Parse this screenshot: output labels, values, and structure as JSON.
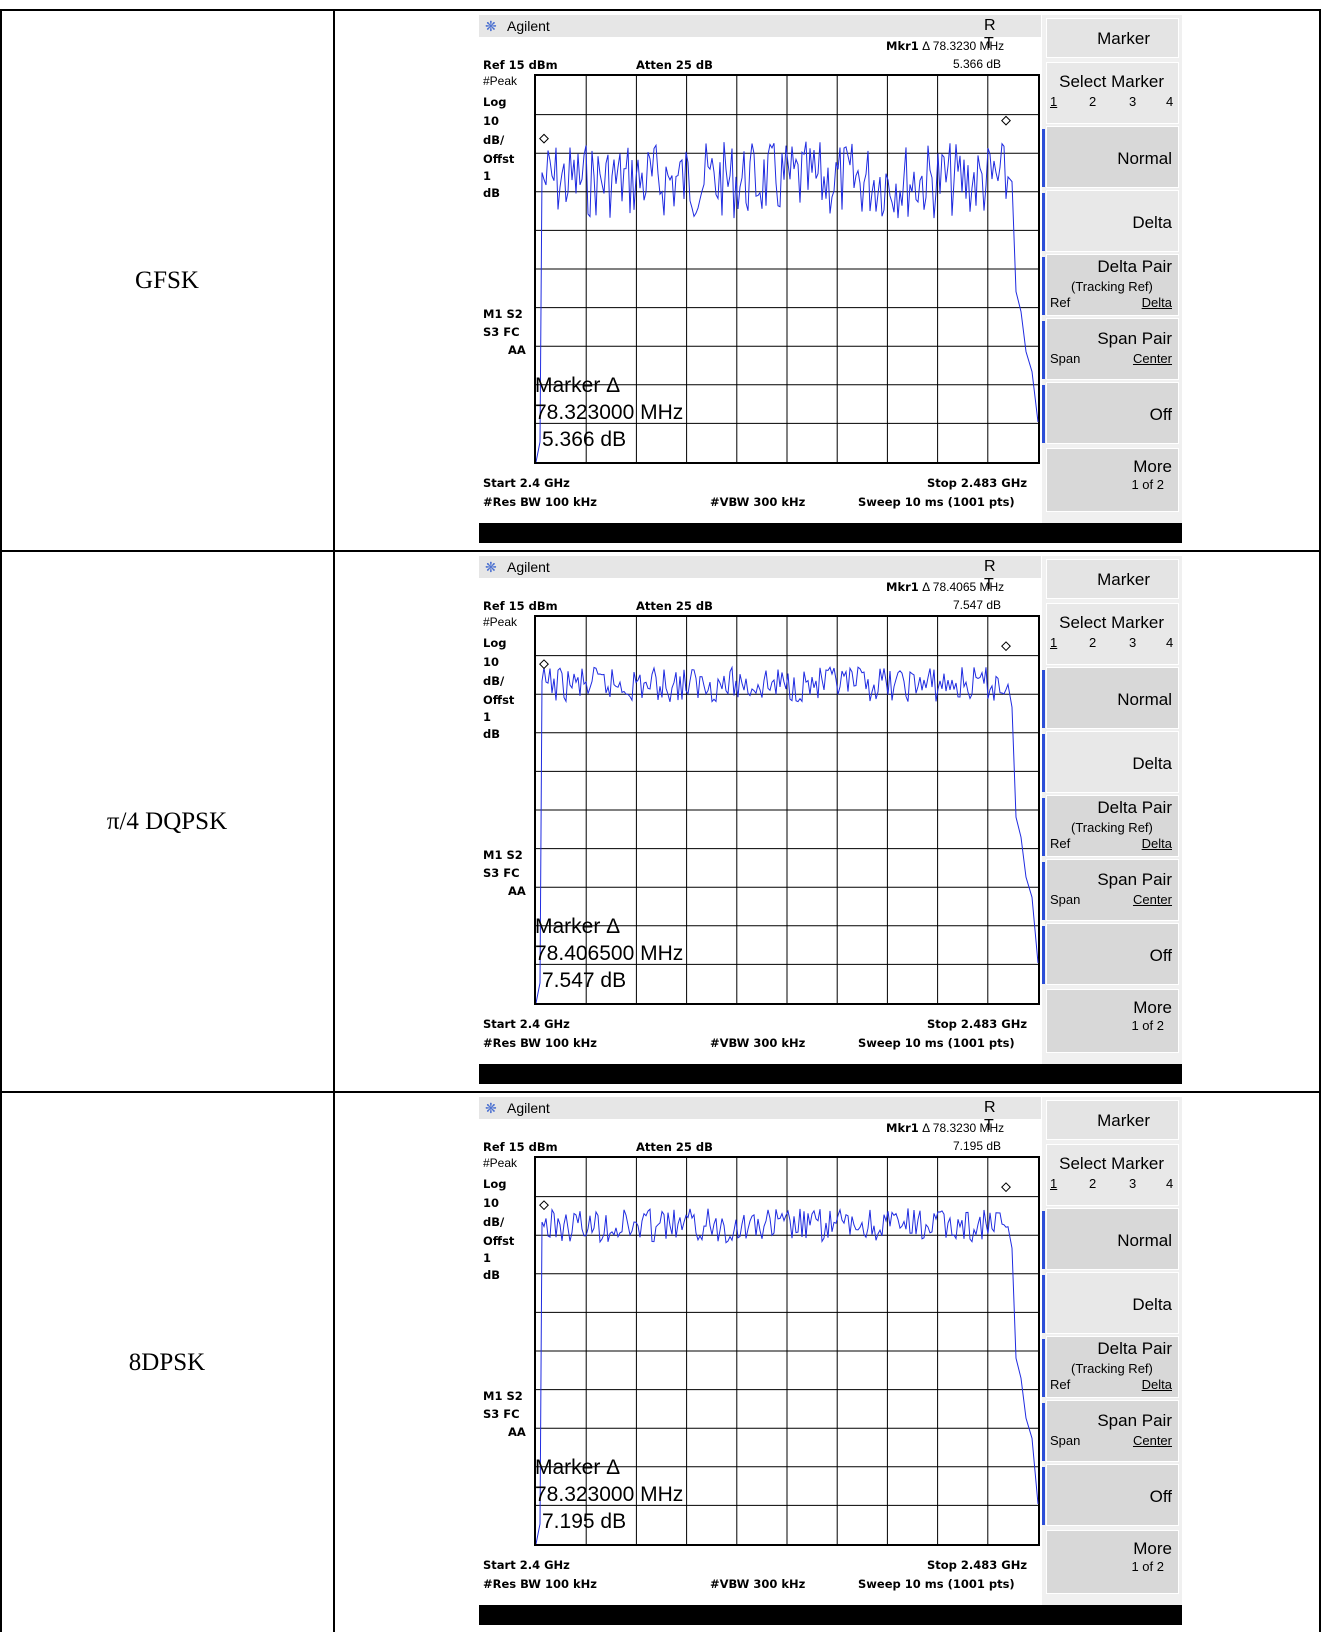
{
  "rows": [
    {
      "modulation": "GFSK",
      "screen": {
        "brand": "Agilent",
        "rt": "R T",
        "mkr_label": "Mkr1",
        "mkr_freq": "Δ 78.3230 MHz",
        "mkr_amp": "5.366 dB",
        "ref": "Ref 15 dBm",
        "atten": "Atten 25 dB",
        "left_labels": [
          "#Peak",
          "Log",
          "10",
          "dB/",
          "Offst",
          "1",
          "dB"
        ],
        "m1s2": "M1  S2",
        "s3fc": "S3  FC",
        "aa": "AA",
        "marker_title": "Marker Δ",
        "marker_freq": "78.323000 MHz",
        "marker_amp": "5.366 dB",
        "start": "Start 2.4 GHz",
        "stop": "Stop 2.483 GHz",
        "rbw": "#Res BW 100 kHz",
        "vbw": "#VBW 300 kHz",
        "sweep": "Sweep 10 ms (1001 pts)",
        "trace_level": 0.83,
        "trace_depth": 0.2
      }
    },
    {
      "modulation": "π/4 DQPSK",
      "screen": {
        "brand": "Agilent",
        "rt": "R T",
        "mkr_label": "Mkr1",
        "mkr_freq": "Δ 78.4065 MHz",
        "mkr_amp": "7.547 dB",
        "ref": "Ref 15 dBm",
        "atten": "Atten 25 dB",
        "left_labels": [
          "#Peak",
          "Log",
          "10",
          "dB/",
          "Offst",
          "1",
          "dB"
        ],
        "m1s2": "M1  S2",
        "s3fc": "S3  FC",
        "aa": "AA",
        "marker_title": "Marker Δ",
        "marker_freq": "78.406500 MHz",
        "marker_amp": "7.547 dB",
        "start": "Start 2.4 GHz",
        "stop": "Stop 2.483 GHz",
        "rbw": "#Res BW 100 kHz",
        "vbw": "#VBW 300 kHz",
        "sweep": "Sweep 10 ms (1001 pts)",
        "trace_level": 0.87,
        "trace_depth": 0.09
      }
    },
    {
      "modulation": "8DPSK",
      "screen": {
        "brand": "Agilent",
        "rt": "R T",
        "mkr_label": "Mkr1",
        "mkr_freq": "Δ 78.3230 MHz",
        "mkr_amp": "7.195 dB",
        "ref": "Ref 15 dBm",
        "atten": "Atten 25 dB",
        "left_labels": [
          "#Peak",
          "Log",
          "10",
          "dB/",
          "Offst",
          "1",
          "dB"
        ],
        "m1s2": "M1  S2",
        "s3fc": "S3  FC",
        "aa": "AA",
        "marker_title": "Marker Δ",
        "marker_freq": "78.323000 MHz",
        "marker_amp": "7.195 dB",
        "start": "Start 2.4 GHz",
        "stop": "Stop 2.483 GHz",
        "rbw": "#Res BW 100 kHz",
        "vbw": "#VBW 300 kHz",
        "sweep": "Sweep 10 ms (1001 pts)",
        "trace_level": 0.87,
        "trace_depth": 0.09
      }
    }
  ],
  "softkeys": {
    "marker": "Marker",
    "select_marker": "Select Marker",
    "select_numbers": [
      "1",
      "2",
      "3",
      "4"
    ],
    "normal": "Normal",
    "delta": "Delta",
    "delta_pair": "Delta Pair",
    "tracking_ref": "(Tracking Ref)",
    "ref": "Ref",
    "delta_sub": "Delta",
    "span_pair": "Span Pair",
    "span": "Span",
    "center": "Center",
    "off": "Off",
    "more": "More",
    "more_page": "1 of 2"
  },
  "colors": {
    "trace": "#1f2be0",
    "grid": "#000000",
    "logo": "#4a6fd0"
  }
}
